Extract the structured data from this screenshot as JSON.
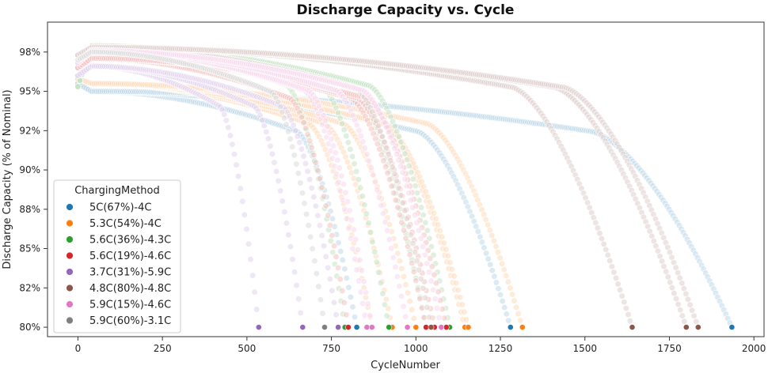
{
  "chart_data": {
    "type": "scatter",
    "title": "Discharge Capacity vs. Cycle",
    "xlabel": "CycleNumber",
    "ylabel": "Discharge Capacity (% of Nominal)",
    "xlim": [
      -90,
      2030
    ],
    "ylim": [
      79.4,
      99.4
    ],
    "x_ticks": [
      0,
      250,
      500,
      750,
      1000,
      1250,
      1500,
      1750,
      2000
    ],
    "x_tick_labels": [
      "0",
      "250",
      "500",
      "750",
      "1000",
      "1250",
      "1500",
      "1750",
      "2000"
    ],
    "y_ticks": [
      80,
      82.5,
      85,
      87.5,
      90,
      92.5,
      95,
      97.5
    ],
    "y_tick_labels": [
      "80%",
      "82%",
      "85%",
      "88%",
      "90%",
      "92%",
      "95%",
      "98%"
    ],
    "grid": false,
    "legend": {
      "title": "ChargingMethod",
      "position": "lower-left"
    },
    "series": [
      {
        "name": "5C(67%)-4C",
        "color": "#1f77b4",
        "start": 95.5,
        "plateau": 95.0,
        "end_cycles": [
          825,
          1280,
          1935
        ]
      },
      {
        "name": "5.3C(54%)-4C",
        "color": "#ff7f0e",
        "start": 95.8,
        "plateau": 95.5,
        "end_cycles": [
          870,
          930,
          1000,
          1145,
          1155,
          1315
        ]
      },
      {
        "name": "5.6C(36%)-4.3C",
        "color": "#2ca02c",
        "start": 95.3,
        "plateau": 97.9,
        "end_cycles": [
          790,
          920,
          1030,
          1100
        ]
      },
      {
        "name": "5.6C(19%)-4.6C",
        "color": "#d62728",
        "start": 96.5,
        "plateau": 97.1,
        "end_cycles": [
          800,
          1030,
          1055,
          1090
        ]
      },
      {
        "name": "3.7C(31%)-5.9C",
        "color": "#9467bd",
        "start": 96.0,
        "plateau": 96.6,
        "end_cycles": [
          535,
          665,
          770
        ]
      },
      {
        "name": "4.8C(80%)-4.8C",
        "color": "#8c564b",
        "start": 97.3,
        "plateau": 97.8,
        "end_cycles": [
          1045,
          1640,
          1800,
          1835
        ]
      },
      {
        "name": "5.9C(15%)-4.6C",
        "color": "#e377c2",
        "start": 96.8,
        "plateau": 97.6,
        "end_cycles": [
          855,
          870,
          975,
          1075
        ]
      },
      {
        "name": "5.9C(60%)-3.1C",
        "color": "#7f7f7f",
        "start": 97.0,
        "plateau": 97.5,
        "end_cycles": [
          730
        ]
      }
    ]
  }
}
